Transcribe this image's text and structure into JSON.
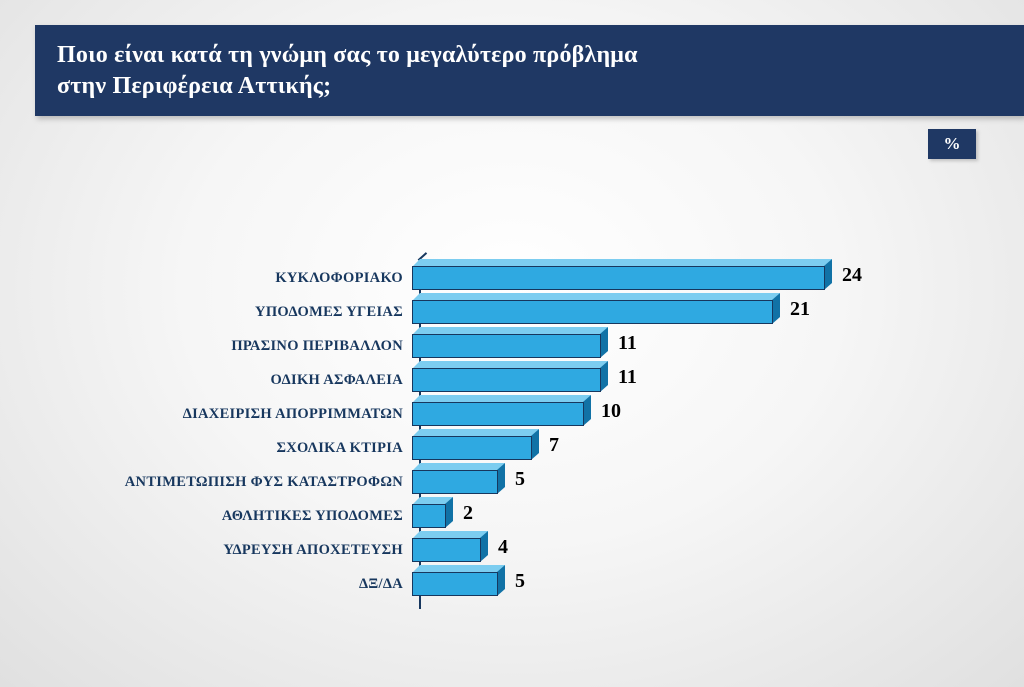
{
  "header": {
    "title_line1": "Ποιο είναι κατά τη γνώμη σας το μεγαλύτερο πρόβλημα",
    "title_line2": "στην Περιφέρεια Αττικής;",
    "unit_badge": "%"
  },
  "chart_data": {
    "type": "bar",
    "orientation": "horizontal",
    "title": "Ποιο είναι κατά τη γνώμη σας το μεγαλύτερο πρόβλημα στην Περιφέρεια Αττικής;",
    "unit": "%",
    "categories": [
      "ΚΥΚΛΟΦΟΡΙΑΚΟ",
      "ΥΠΟΔΟΜΕΣ ΥΓΕΙΑΣ",
      "ΠΡΑΣΙΝΟ ΠΕΡΙΒΑΛΛΟΝ",
      "ΟΔΙΚΗ ΑΣΦΑΛΕΙΑ",
      "ΔΙΑΧΕΙΡΙΣΗ ΑΠΟΡΡΙΜΜΑΤΩΝ",
      "ΣΧΟΛΙΚΑ ΚΤΙΡΙΑ",
      "ΑΝΤΙΜΕΤΩΠΙΣΗ ΦΥΣ ΚΑΤΑΣΤΡΟΦΩΝ",
      "ΑΘΛΗΤΙΚΕΣ ΥΠΟΔΟΜΕΣ",
      "ΥΔΡΕΥΣΗ ΑΠΟΧΕΤΕΥΣΗ",
      "ΔΞ/ΔΑ"
    ],
    "values": [
      24,
      21,
      11,
      11,
      10,
      7,
      5,
      2,
      4,
      5
    ],
    "xlim": [
      0,
      25
    ],
    "grid": false,
    "legend": "none",
    "data_labels": "end-of-bar",
    "colors": {
      "navy": "#1F3864",
      "bar_front": "#2FA9E1",
      "bar_top": "#7CCDF0",
      "bar_side": "#1172A6",
      "outline": "#17375E"
    }
  }
}
